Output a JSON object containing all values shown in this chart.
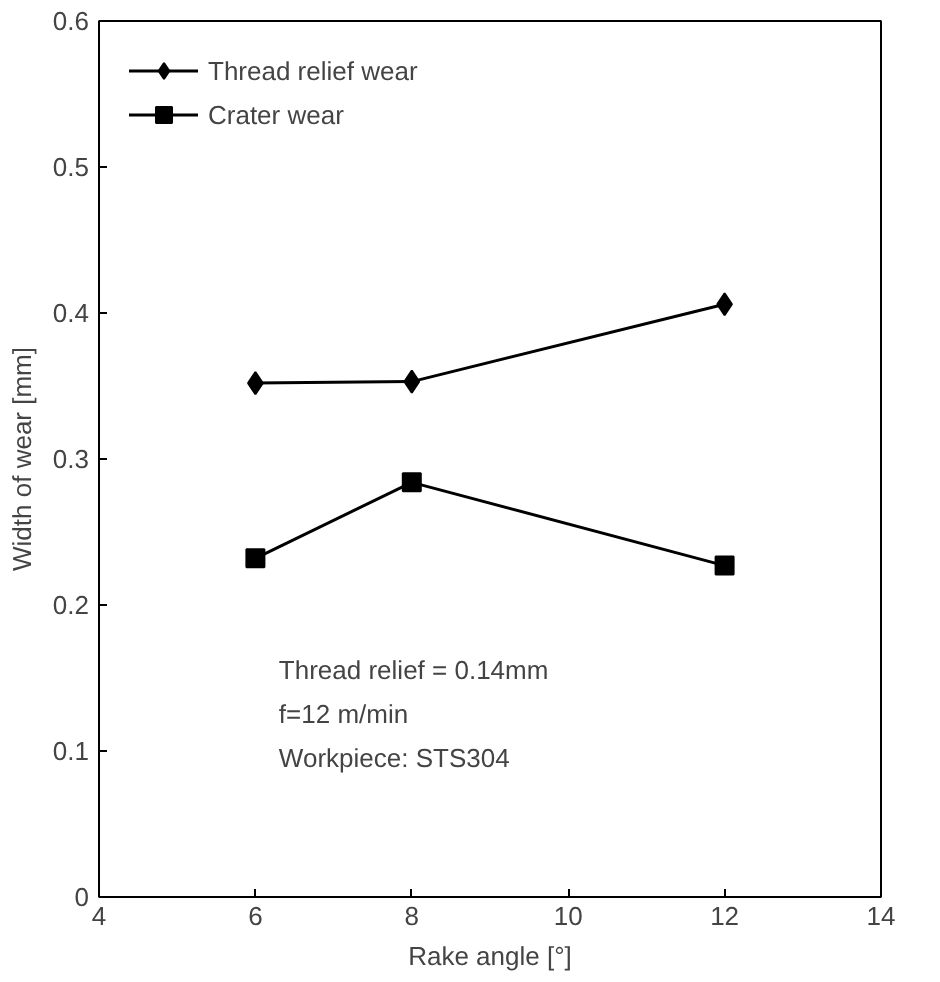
{
  "chart_data": {
    "type": "line",
    "xlabel": "Rake angle [°]",
    "ylabel": "Width of wear [mm]",
    "x": [
      6,
      8,
      12
    ],
    "series": [
      {
        "name": "Thread relief wear",
        "color": "#000000",
        "values": [
          0.352,
          0.353,
          0.406
        ],
        "marker": "diamond"
      },
      {
        "name": "Crater wear",
        "color": "#000000",
        "values": [
          0.232,
          0.284,
          0.227
        ],
        "marker": "square"
      }
    ],
    "xlim": [
      4,
      14
    ],
    "xticks": [
      4,
      6,
      8,
      10,
      12,
      14
    ],
    "ylim": [
      0,
      0.6
    ],
    "yticks": [
      0,
      0.1,
      0.2,
      0.3,
      0.4,
      0.5,
      0.6
    ],
    "annotations": [
      "Thread relief = 0.14mm",
      "f=12 m/min",
      "Workpiece: STS304"
    ],
    "legend": "top left",
    "grid": false,
    "line_style": "solid"
  }
}
